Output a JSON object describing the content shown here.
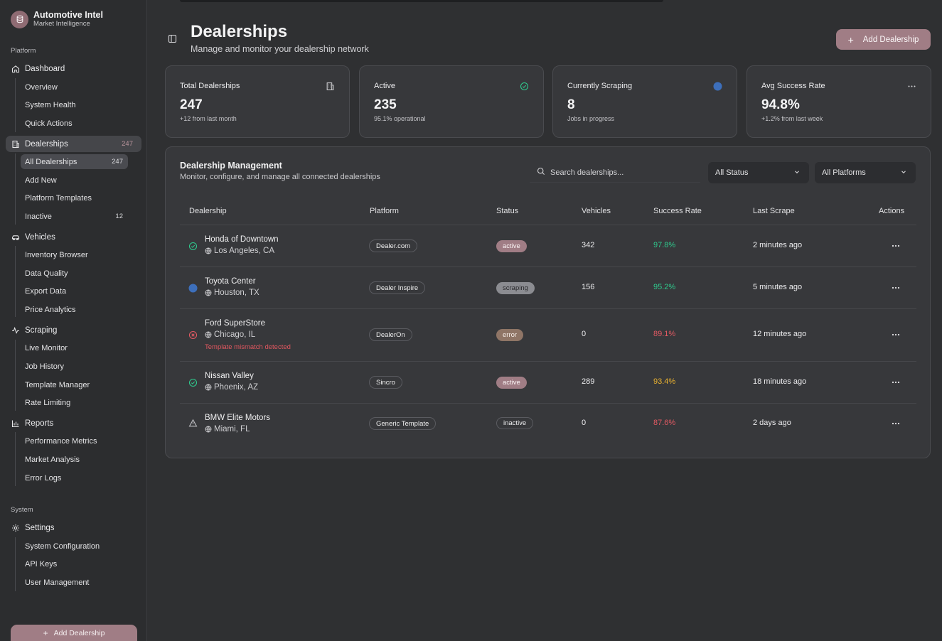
{
  "brand": {
    "title": "Automotive Intel",
    "subtitle": "Market Intelligence",
    "icon": "database-icon"
  },
  "sidebar": {
    "platform_label": "Platform",
    "system_label": "System",
    "dashboard": {
      "label": "Dashboard",
      "items": [
        "Overview",
        "System Health",
        "Quick Actions"
      ]
    },
    "dealerships": {
      "label": "Dealerships",
      "count": "247",
      "items": [
        {
          "label": "All Dealerships",
          "count": "247"
        },
        {
          "label": "Add New",
          "count": ""
        },
        {
          "label": "Platform Templates",
          "count": ""
        },
        {
          "label": "Inactive",
          "count": "12"
        }
      ]
    },
    "vehicles": {
      "label": "Vehicles",
      "items": [
        "Inventory Browser",
        "Data Quality",
        "Export Data",
        "Price Analytics"
      ]
    },
    "scraping": {
      "label": "Scraping",
      "items": [
        "Live Monitor",
        "Job History",
        "Template Manager",
        "Rate Limiting"
      ]
    },
    "reports": {
      "label": "Reports",
      "items": [
        "Performance Metrics",
        "Market Analysis",
        "Error Logs"
      ]
    },
    "settings": {
      "label": "Settings",
      "items": [
        "System Configuration",
        "API Keys",
        "User Management"
      ]
    },
    "add_button": "Add Dealership"
  },
  "header": {
    "title": "Dealerships",
    "subtitle": "Manage and monitor your dealership network",
    "add_button": "Add Dealership"
  },
  "stats": [
    {
      "label": "Total Dealerships",
      "value": "247",
      "desc": "+12 from last month",
      "icon": "building-icon"
    },
    {
      "label": "Active",
      "value": "235",
      "desc": "95.1% operational",
      "icon": "check-circle-icon"
    },
    {
      "label": "Currently Scraping",
      "value": "8",
      "desc": "Jobs in progress",
      "icon": "activity-dot-icon"
    },
    {
      "label": "Avg Success Rate",
      "value": "94.8%",
      "desc": "+1.2% from last week",
      "icon": "more-icon"
    }
  ],
  "table_card": {
    "title": "Dealership Management",
    "subtitle": "Monitor, configure, and manage all connected dealerships",
    "search_placeholder": "Search dealerships...",
    "status_filter": "All Status",
    "platform_filter": "All Platforms",
    "columns": [
      "Dealership",
      "Platform",
      "Status",
      "Vehicles",
      "Success Rate",
      "Last Scrape",
      "Actions"
    ],
    "rows": [
      {
        "name": "Honda of Downtown",
        "location": "Los Angeles, CA",
        "platform": "Dealer.com",
        "status": "active",
        "vehicles": "342",
        "rate": "97.8%",
        "last": "2 minutes ago",
        "error": ""
      },
      {
        "name": "Toyota Center",
        "location": "Houston, TX",
        "platform": "Dealer Inspire",
        "status": "scraping",
        "vehicles": "156",
        "rate": "95.2%",
        "last": "5 minutes ago",
        "error": ""
      },
      {
        "name": "Ford SuperStore",
        "location": "Chicago, IL",
        "platform": "DealerOn",
        "status": "error",
        "vehicles": "0",
        "rate": "89.1%",
        "last": "12 minutes ago",
        "error": "Template mismatch detected"
      },
      {
        "name": "Nissan Valley",
        "location": "Phoenix, AZ",
        "platform": "Sincro",
        "status": "active",
        "vehicles": "289",
        "rate": "93.4%",
        "last": "18 minutes ago",
        "error": ""
      },
      {
        "name": "BMW Elite Motors",
        "location": "Miami, FL",
        "platform": "Generic Template",
        "status": "inactive",
        "vehicles": "0",
        "rate": "87.6%",
        "last": "2 days ago",
        "error": ""
      }
    ]
  },
  "colors": {
    "accent": "#a07d85",
    "success": "#2fc98d",
    "danger": "#e25a63",
    "warning": "#eab230",
    "scraping_dot": "#3d6fbb"
  }
}
